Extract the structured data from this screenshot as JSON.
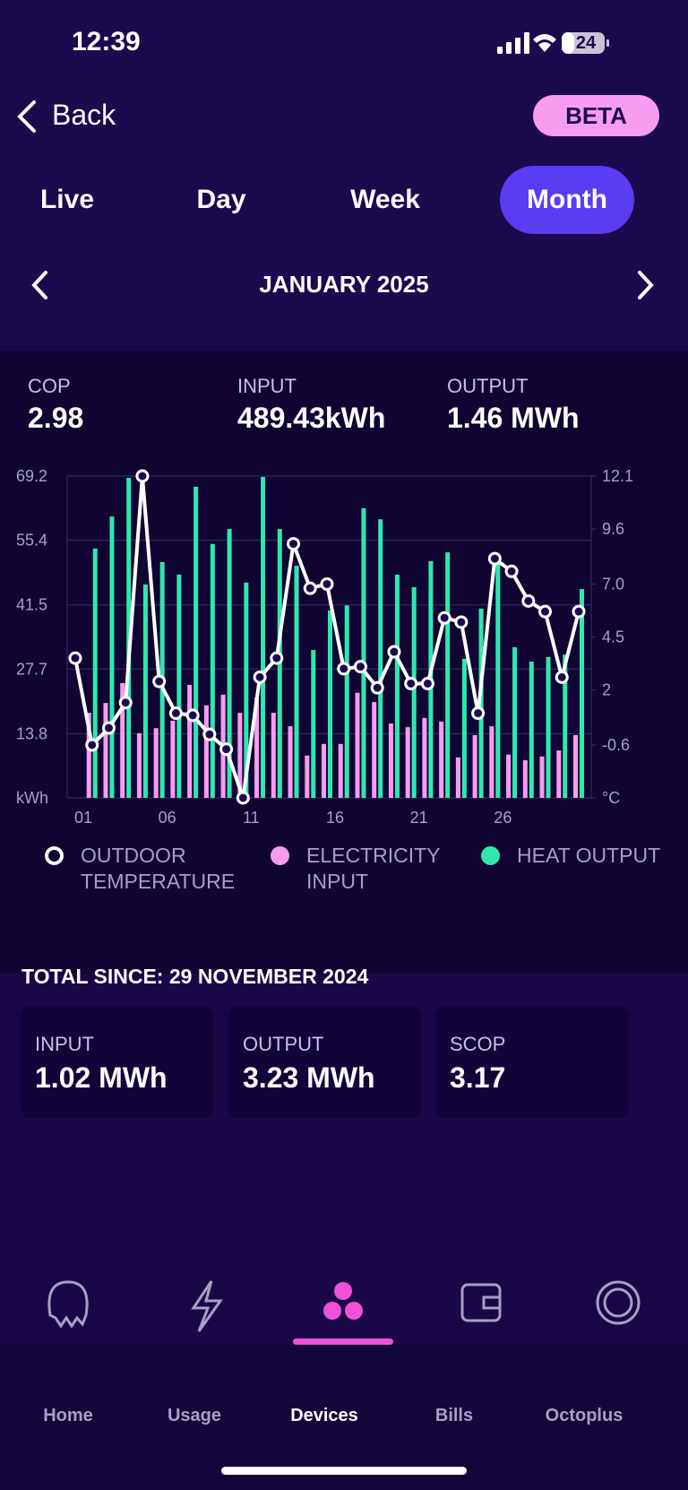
{
  "status_bar": {
    "time": "12:39",
    "battery": "24"
  },
  "nav": {
    "back": "Back",
    "badge": "BETA"
  },
  "tabs": [
    "Live",
    "Day",
    "Week",
    "Month"
  ],
  "active_tab": 3,
  "period": "JANUARY 2025",
  "stats": [
    {
      "label": "COP",
      "value": "2.98"
    },
    {
      "label": "INPUT",
      "value": "489.43kWh"
    },
    {
      "label": "OUTPUT",
      "value": "1.46 MWh"
    }
  ],
  "chart_data": {
    "type": "bar",
    "categories": [
      "01",
      null,
      null,
      null,
      null,
      "06",
      null,
      null,
      null,
      null,
      "11",
      null,
      null,
      null,
      null,
      "16",
      null,
      null,
      null,
      null,
      "21",
      null,
      null,
      null,
      null,
      "26",
      null,
      null,
      null,
      null,
      null
    ],
    "series": [
      {
        "name": "OUTDOOR TEMPERATURE",
        "type": "line",
        "axis": "y2",
        "color": "#ffffff",
        "values": [
          3.5,
          -0.6,
          0.2,
          1.4,
          12.1,
          2.4,
          0.9,
          0.8,
          -0.1,
          -0.8,
          -3.1,
          2.6,
          3.5,
          8.9,
          6.8,
          7.0,
          3.0,
          3.1,
          2.1,
          3.8,
          2.3,
          2.3,
          5.4,
          5.2,
          0.9,
          8.2,
          7.6,
          6.2,
          5.7,
          2.6,
          5.7
        ]
      },
      {
        "name": "ELECTRICITY INPUT",
        "type": "bar",
        "color": "#f59cf0",
        "values": [
          null,
          18.3,
          20.4,
          24.7,
          13.9,
          15.0,
          16.6,
          24.3,
          19.9,
          22.2,
          18.3,
          21.6,
          18.3,
          15.4,
          9.1,
          11.6,
          11.6,
          22.6,
          20.6,
          16.0,
          15.2,
          17.2,
          16.4,
          8.7,
          13.5,
          15.4,
          9.3,
          8.1,
          8.9,
          10.2,
          13.5
        ]
      },
      {
        "name": "HEAT OUTPUT",
        "type": "bar",
        "color": "#2ee8b0",
        "values": [
          null,
          53.6,
          60.5,
          68.8,
          45.9,
          50.7,
          48.0,
          66.9,
          54.6,
          57.8,
          46.3,
          69.0,
          57.8,
          49.9,
          31.8,
          40.3,
          41.4,
          62.3,
          59.9,
          48.0,
          45.3,
          50.9,
          52.8,
          29.9,
          40.7,
          50.9,
          32.4,
          29.3,
          30.3,
          30.8,
          44.9
        ]
      }
    ],
    "ylim": [
      0,
      69.2
    ],
    "yticks": [
      {
        "value": 0,
        "label": "kWh"
      },
      13.8,
      27.7,
      41.5,
      55.4,
      69.2
    ],
    "y2lim": [
      -3.1,
      12.1
    ],
    "y2ticks": [
      {
        "value": -3.1,
        "label": "°C"
      },
      -0.6,
      2.0,
      {
        "value": 4.5,
        "label": "4.5"
      },
      {
        "value": 7.0,
        "label": "7.0"
      },
      9.6,
      12.1
    ],
    "grid": true
  },
  "totals": {
    "title": "TOTAL SINCE: 29 NOVEMBER 2024",
    "cards": [
      {
        "label": "INPUT",
        "value": "1.02 MWh"
      },
      {
        "label": "OUTPUT",
        "value": "3.23 MWh"
      },
      {
        "label": "SCOP",
        "value": "3.17"
      }
    ]
  },
  "bottom_nav": [
    "Home",
    "Usage",
    "Devices",
    "Bills",
    "Octoplus"
  ],
  "active_nav": 2
}
